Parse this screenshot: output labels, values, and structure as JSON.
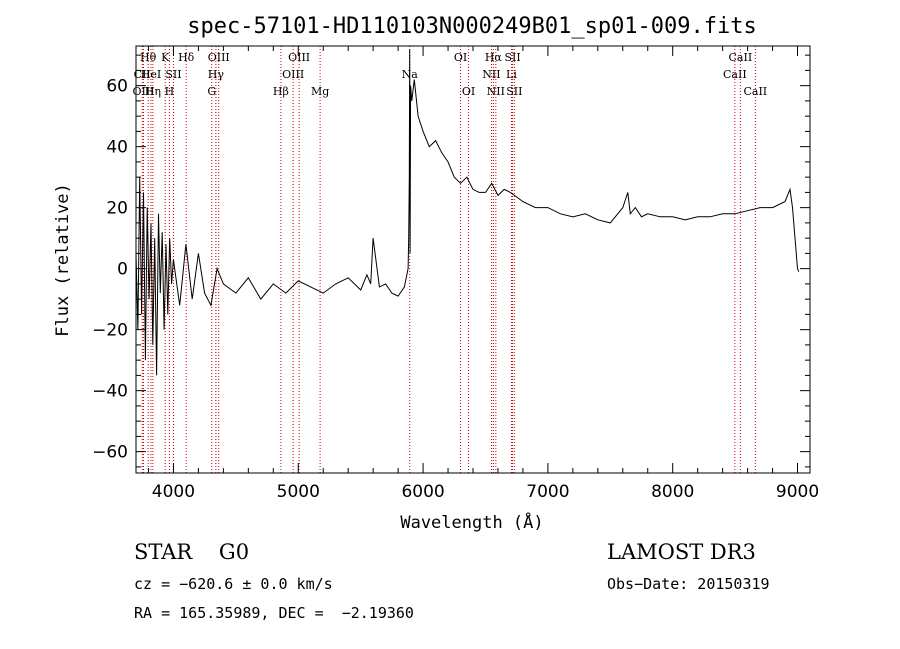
{
  "chart_data": {
    "type": "line",
    "title": "spec-57101-HD110103N000249B01_sp01-009.fits",
    "xlabel": "Wavelength (Å)",
    "ylabel": "Flux (relative)",
    "xlim": [
      3700,
      9100
    ],
    "ylim": [
      -67,
      73
    ],
    "xticks": [
      4000,
      5000,
      6000,
      7000,
      8000,
      9000
    ],
    "yticks": [
      -60,
      -40,
      -20,
      0,
      20,
      40,
      60
    ],
    "series": [
      {
        "x": [
          3700,
          3715,
          3730,
          3745,
          3760,
          3775,
          3790,
          3805,
          3820,
          3835,
          3850,
          3865,
          3880,
          3895,
          3910,
          3925,
          3940,
          3955,
          3970,
          3985,
          4000,
          4050,
          4100,
          4150,
          4200,
          4250,
          4300,
          4350,
          4400,
          4500,
          4600,
          4700,
          4800,
          4900,
          5000,
          5100,
          5200,
          5300,
          5400,
          5500,
          5550,
          5580,
          5600,
          5650,
          5700,
          5750,
          5800,
          5850,
          5880,
          5885,
          5890,
          5893,
          5896,
          5900,
          5910,
          5930,
          5960,
          6000,
          6050,
          6100,
          6150,
          6200,
          6250,
          6300,
          6350,
          6400,
          6450,
          6500,
          6550,
          6600,
          6650,
          6700,
          6800,
          6900,
          7000,
          7100,
          7200,
          7300,
          7400,
          7500,
          7600,
          7640,
          7660,
          7700,
          7750,
          7800,
          7900,
          8000,
          8100,
          8200,
          8300,
          8400,
          8500,
          8600,
          8700,
          8800,
          8900,
          8940,
          8960,
          8980,
          9000,
          9010
        ],
        "y": [
          5,
          -20,
          30,
          -15,
          25,
          -30,
          20,
          -10,
          15,
          -25,
          10,
          -35,
          18,
          -8,
          12,
          -20,
          8,
          -15,
          10,
          -5,
          3,
          -12,
          8,
          -10,
          5,
          -8,
          -12,
          0,
          -5,
          -8,
          -3,
          -10,
          -5,
          -8,
          -4,
          -6,
          -8,
          -5,
          -3,
          -7,
          -2,
          -5,
          10,
          -6,
          -5,
          -8,
          -9,
          -6,
          0,
          10,
          30,
          72,
          5,
          60,
          55,
          62,
          50,
          45,
          40,
          42,
          38,
          35,
          30,
          28,
          30,
          26,
          25,
          25,
          28,
          24,
          26,
          25,
          22,
          20,
          20,
          18,
          17,
          18,
          16,
          15,
          20,
          25,
          18,
          20,
          17,
          18,
          17,
          17,
          16,
          17,
          17,
          18,
          18,
          19,
          20,
          20,
          22,
          26,
          20,
          10,
          0,
          -1
        ]
      }
    ],
    "lines": [
      {
        "name": "Hθ",
        "x": 3797,
        "row": 1
      },
      {
        "name": "CII",
        "x": 3750,
        "row": 2
      },
      {
        "name": "OIII",
        "x": 3760,
        "row": 3
      },
      {
        "name": "Hη",
        "x": 3835,
        "row": 3
      },
      {
        "name": "HeI",
        "x": 3820,
        "row": 2
      },
      {
        "name": "K",
        "x": 3934,
        "row": 1
      },
      {
        "name": "H",
        "x": 3968,
        "row": 3
      },
      {
        "name": "SII",
        "x": 4000,
        "row": 2
      },
      {
        "name": "Hδ",
        "x": 4102,
        "row": 1
      },
      {
        "name": "OIII",
        "x": 4363,
        "row": 1
      },
      {
        "name": "Hγ",
        "x": 4340,
        "row": 2
      },
      {
        "name": "G",
        "x": 4307,
        "row": 3
      },
      {
        "name": "Hβ",
        "x": 4861,
        "row": 3
      },
      {
        "name": "OIII",
        "x": 5007,
        "row": 1
      },
      {
        "name": "OIII",
        "x": 4959,
        "row": 2
      },
      {
        "name": "Mg",
        "x": 5175,
        "row": 3
      },
      {
        "name": "Na",
        "x": 5893,
        "row": 2
      },
      {
        "name": "OI",
        "x": 6300,
        "row": 1
      },
      {
        "name": "OI",
        "x": 6364,
        "row": 3
      },
      {
        "name": "Hα",
        "x": 6563,
        "row": 1
      },
      {
        "name": "NII",
        "x": 6548,
        "row": 2
      },
      {
        "name": "NII",
        "x": 6583,
        "row": 3
      },
      {
        "name": "SII",
        "x": 6717,
        "row": 1
      },
      {
        "name": "Li",
        "x": 6708,
        "row": 2
      },
      {
        "name": "SII",
        "x": 6731,
        "row": 3
      },
      {
        "name": "CaII",
        "x": 8542,
        "row": 1
      },
      {
        "name": "CaII",
        "x": 8498,
        "row": 2
      },
      {
        "name": "CaII",
        "x": 8662,
        "row": 3
      }
    ]
  },
  "info": {
    "class": "STAR    G0",
    "survey": "LAMOST DR3",
    "cz": "cz = −620.6 ± 0.0 km/s",
    "obsdate": "Obs−Date: 20150319",
    "coords": "RA = 165.35989, DEC =  −2.19360"
  }
}
